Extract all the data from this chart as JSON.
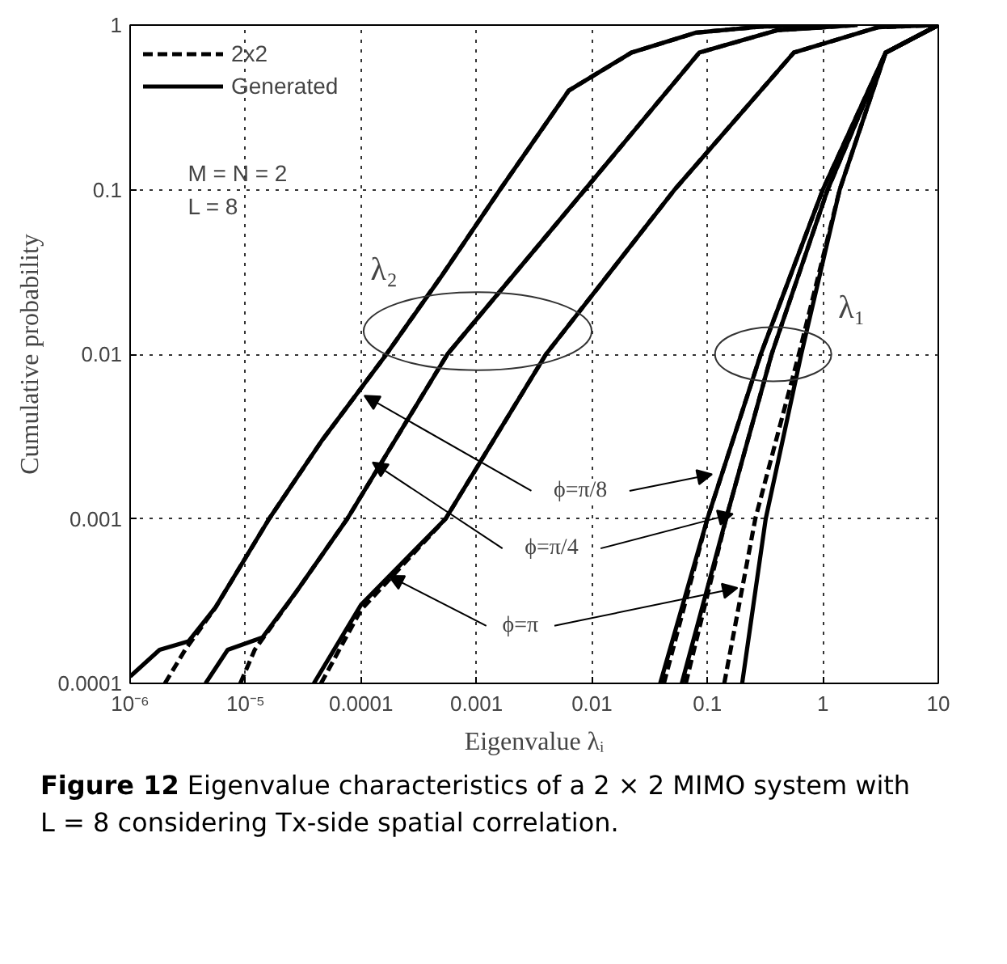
{
  "chart_data": {
    "type": "line",
    "xlabel": "Eigenvalue λᵢ",
    "ylabel": "Cumulative probability",
    "log": "xy",
    "grid": true,
    "legend": "top left",
    "marker": "none",
    "xlim": [
      1e-06,
      10
    ],
    "ylim": [
      0.0001,
      1
    ],
    "xticks": [
      {
        "value": 1e-06,
        "label": "10⁻⁶"
      },
      {
        "value": 1e-05,
        "label": "10⁻⁵"
      },
      0.0001,
      0.001,
      0.01,
      0.1,
      1,
      10
    ],
    "yticks": [
      0.0001,
      0.001,
      0.01,
      0.1,
      1
    ],
    "series": [
      {
        "name": "2x2",
        "color": "#000000",
        "line_style": "dashed",
        "x": [
          2e-06,
          3e-06,
          5.5e-06,
          1.6e-05,
          4.6e-05,
          0.000166,
          0.0005,
          0.0016,
          0.0063,
          0.022,
          0.08,
          0.3,
          1
        ],
        "values": [
          0.0001,
          0.00016,
          0.00029,
          0.001,
          0.003,
          0.01,
          0.03,
          0.1,
          0.4,
          0.68,
          0.9,
          0.98,
          1
        ]
      },
      {
        "name": "Generated",
        "color": "#000000",
        "line_style": "solid",
        "x": [
          1e-06,
          1.8e-06,
          3.2e-06,
          5.5e-06,
          1.6e-05,
          4.6e-05,
          0.000166,
          0.0005,
          0.0016,
          0.0063,
          0.022,
          0.08,
          0.3,
          1
        ],
        "values": [
          0.00011,
          0.00016,
          0.00018,
          0.00029,
          0.001,
          0.003,
          0.01,
          0.03,
          0.1,
          0.4,
          0.68,
          0.9,
          0.98,
          1
        ]
      },
      {
        "color": "#000000",
        "line_style": "dashed",
        "x": [
          9e-06,
          1.2e-05,
          2.75e-05,
          7.6e-05,
          0.00056,
          0.0087,
          0.085,
          0.4,
          2
        ],
        "values": [
          0.0001,
          0.00016,
          0.00036,
          0.001,
          0.01,
          0.1,
          0.68,
          0.93,
          1
        ]
      },
      {
        "color": "#000000",
        "line_style": "solid",
        "x": [
          4.5e-06,
          7e-06,
          1.4e-05,
          2.75e-05,
          7.6e-05,
          0.00056,
          0.0087,
          0.085,
          0.4,
          2
        ],
        "values": [
          0.0001,
          0.00016,
          0.00019,
          0.00036,
          0.001,
          0.01,
          0.1,
          0.68,
          0.93,
          1
        ]
      },
      {
        "color": "#000000",
        "line_style": "dashed",
        "x": [
          4.5e-05,
          0.0001,
          0.00054,
          0.004,
          0.052,
          0.56,
          3,
          10
        ],
        "values": [
          0.0001,
          0.00028,
          0.001,
          0.01,
          0.1,
          0.68,
          0.97,
          1
        ]
      },
      {
        "color": "#000000",
        "line_style": "solid",
        "x": [
          3.9e-05,
          0.0001,
          0.00054,
          0.004,
          0.052,
          0.56,
          3,
          10
        ],
        "values": [
          0.0001,
          0.0003,
          0.001,
          0.01,
          0.1,
          0.68,
          0.97,
          1
        ]
      },
      {
        "color": "#000000",
        "line_style": "dashed",
        "x": [
          0.042,
          0.1,
          0.29,
          1,
          3.5,
          10
        ],
        "values": [
          0.0001,
          0.001,
          0.01,
          0.1,
          0.68,
          1
        ]
      },
      {
        "color": "#000000",
        "line_style": "solid",
        "x": [
          0.039,
          0.1,
          0.29,
          1,
          3.5,
          10
        ],
        "values": [
          0.0001,
          0.001,
          0.01,
          0.1,
          0.68,
          1
        ]
      },
      {
        "color": "#000000",
        "line_style": "dashed",
        "x": [
          0.065,
          0.145,
          0.36,
          1.1,
          3.5,
          10
        ],
        "values": [
          0.0001,
          0.001,
          0.01,
          0.1,
          0.68,
          1
        ]
      },
      {
        "color": "#000000",
        "line_style": "solid",
        "x": [
          0.06,
          0.145,
          0.36,
          1.1,
          3.5,
          10
        ],
        "values": [
          0.0001,
          0.001,
          0.01,
          0.1,
          0.68,
          1
        ]
      },
      {
        "color": "#000000",
        "line_style": "dashed",
        "x": [
          0.14,
          0.26,
          0.62,
          1.4,
          3.5,
          10
        ],
        "values": [
          0.0001,
          0.001,
          0.01,
          0.1,
          0.68,
          1
        ]
      },
      {
        "color": "#000000",
        "line_style": "solid",
        "x": [
          0.2,
          0.32,
          0.65,
          1.4,
          3.5,
          10
        ],
        "values": [
          0.0001,
          0.001,
          0.01,
          0.1,
          0.68,
          1
        ]
      }
    ],
    "annotations": [
      "M = N = 2",
      "L = 8",
      "λ₂",
      "λ₁",
      {
        "text": "ϕ=π/8",
        "x": 0.000107,
        "y": 0.0056
      },
      {
        "text": "ϕ=π/4",
        "x": 0.000126,
        "y": 0.0022
      },
      {
        "text": "ϕ=π",
        "x": 0.000174,
        "y": 0.00045
      },
      "Figure 12",
      "Eigenvalue characteristics of a 2 × 2 MIMO system with L = 8 considering Tx-side spatial correlation."
    ]
  }
}
